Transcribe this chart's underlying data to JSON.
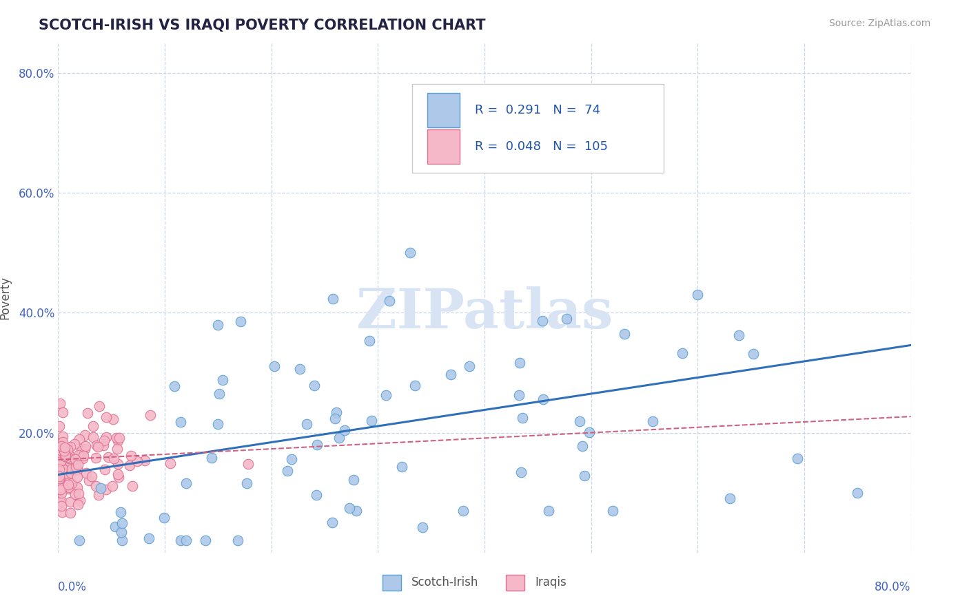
{
  "title": "SCOTCH-IRISH VS IRAQI POVERTY CORRELATION CHART",
  "source": "Source: ZipAtlas.com",
  "ylabel": "Poverty",
  "xlim": [
    0.0,
    0.8
  ],
  "ylim": [
    0.0,
    0.85
  ],
  "scotch_irish_R": 0.291,
  "scotch_irish_N": 74,
  "iraqis_R": 0.048,
  "iraqis_N": 105,
  "scotch_irish_color": "#adc8e8",
  "scotch_irish_edge_color": "#5a9fd4",
  "scotch_irish_line_color": "#3070b8",
  "iraqis_color": "#f5b8c8",
  "iraqis_edge_color": "#e07090",
  "iraqis_line_color": "#d06080",
  "legend_R_color": "#2255aa",
  "legend_N_color": "#2255aa",
  "legend_label_color": "#333333",
  "background_color": "#ffffff",
  "grid_color": "#c8d4e8",
  "watermark": "ZIPatlas",
  "watermark_color": "#d8e4f4",
  "y_tick_positions": [
    0.2,
    0.4,
    0.6,
    0.8
  ],
  "y_tick_labels": [
    "20.0%",
    "40.0%",
    "60.0%",
    "80.0%"
  ],
  "x_grid_positions": [
    0.0,
    0.1,
    0.2,
    0.3,
    0.4,
    0.5,
    0.6,
    0.7,
    0.8
  ],
  "bottom_legend_scotch_label": "Scotch-Irish",
  "bottom_legend_iraqis_label": "Iraqis",
  "si_line_intercept": 0.13,
  "si_line_slope": 0.27,
  "irq_line_intercept": 0.155,
  "irq_line_slope": 0.09
}
